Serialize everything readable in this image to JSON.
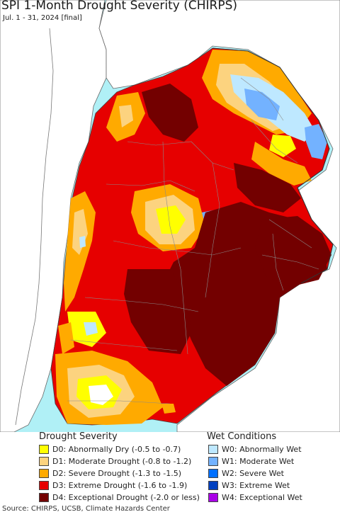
{
  "title": "SPI 1-Month Drought Severity (CHIRPS)",
  "subtitle": "Jul. 1 - 31, 2024 [final]",
  "legend": {
    "drought_heading": "Drought Severity",
    "wet_heading": "Wet Conditions",
    "drought": [
      {
        "label": "D0: Abnormally Dry (-0.5 to -0.7)",
        "color": "#ffff00"
      },
      {
        "label": "D1: Moderate Drought (-0.8 to -1.2)",
        "color": "#fcd37f"
      },
      {
        "label": "D2: Severe Drought (-1.3 to -1.5)",
        "color": "#ffaa00"
      },
      {
        "label": "D3: Extreme Drought (-1.6 to -1.9)",
        "color": "#e60000"
      },
      {
        "label": "D4: Exceptional Drought (-2.0 or less)",
        "color": "#730000"
      }
    ],
    "wet": [
      {
        "label": "W0: Abnormally Wet",
        "color": "#bee8ff"
      },
      {
        "label": "W1: Moderate Wet",
        "color": "#73b2ff"
      },
      {
        "label": "W2: Severe Wet",
        "color": "#0070ff"
      },
      {
        "label": "W3: Extreme Wet",
        "color": "#0040c0"
      },
      {
        "label": "W4: Exceptional Wet",
        "color": "#a900e6"
      }
    ]
  },
  "source": "Source: CHIRPS, UCSB, Climate Hazards Center",
  "map_colors": {
    "ocean": "#b0f0f6",
    "land_outside": "#ffffff",
    "border": "#555555"
  }
}
